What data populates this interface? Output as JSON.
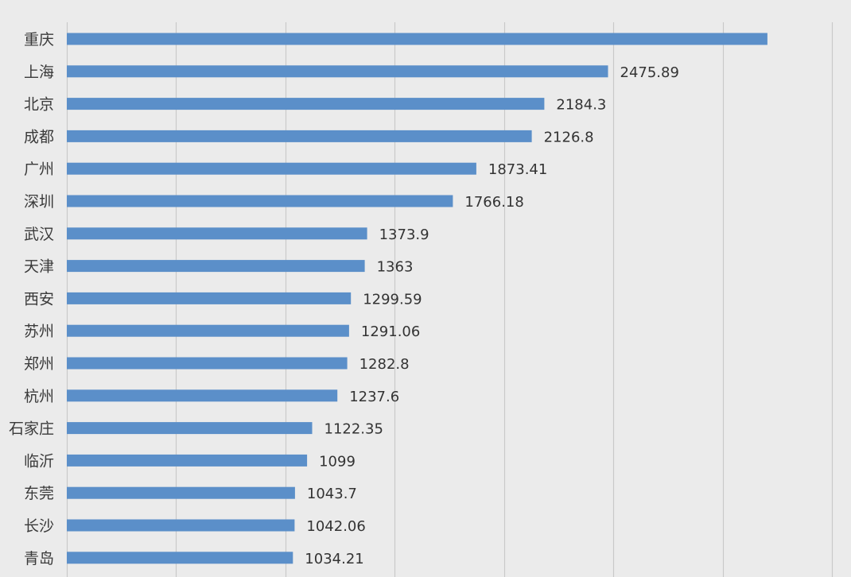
{
  "chart_data": {
    "type": "bar",
    "orientation": "horizontal",
    "categories": [
      "重庆",
      "上海",
      "北京",
      "成都",
      "广州",
      "深圳",
      "武汉",
      "天津",
      "西安",
      "苏州",
      "郑州",
      "杭州",
      "石家庄",
      "临沂",
      "东莞",
      "长沙",
      "青岛"
    ],
    "values": [
      3205,
      2475.89,
      2184.3,
      2126.8,
      1873.41,
      1766.18,
      1373.9,
      1363,
      1299.59,
      1291.06,
      1282.8,
      1237.6,
      1122.35,
      1099,
      1043.7,
      1042.06,
      1034.21
    ],
    "value_labels": [
      "",
      "2475.89",
      "2184.3",
      "2126.8",
      "1873.41",
      "1766.18",
      "1373.9",
      "1363",
      "1299.59",
      "1291.06",
      "1282.8",
      "1237.6",
      "1122.35",
      "1099",
      "1043.7",
      "1042.06",
      "1034.21"
    ],
    "xlim": [
      0,
      3500
    ],
    "grid": true,
    "bar_color": "#5b8fc9",
    "grid_color": "#c9c9c9",
    "background_color": "#ebebeb"
  }
}
